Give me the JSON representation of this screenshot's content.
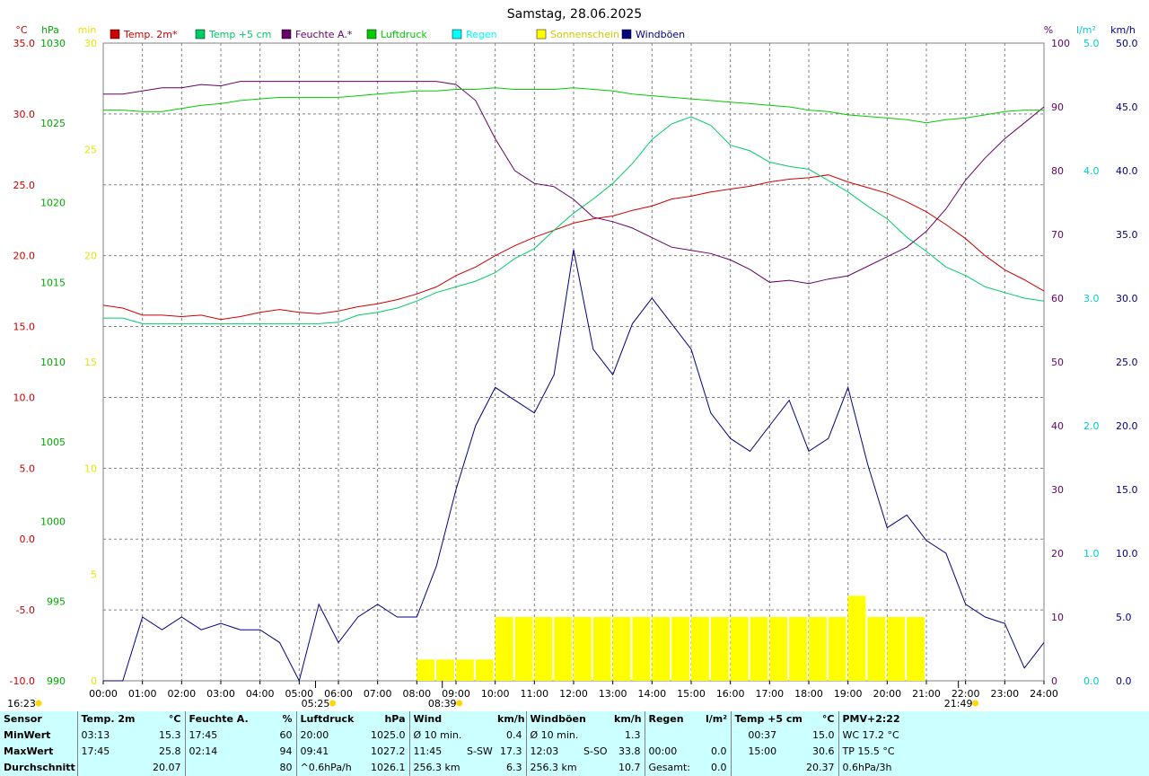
{
  "chart_data": {
    "type": "line",
    "title": "Samstag, 28.06.2025",
    "x_unit": "hours",
    "xlim": [
      0,
      24
    ],
    "x_ticks": [
      "00:00",
      "01:00",
      "02:00",
      "03:00",
      "04:00",
      "05:00",
      "06:00",
      "07:00",
      "08:00",
      "09:00",
      "10:00",
      "11:00",
      "12:00",
      "13:00",
      "14:00",
      "15:00",
      "16:00",
      "17:00",
      "18:00",
      "19:00",
      "20:00",
      "21:00",
      "22:00",
      "23:00",
      "24:00"
    ],
    "axes": {
      "temp": {
        "unit": "°C",
        "range": [
          -10,
          35
        ],
        "ticks": [
          "35.0",
          "30.0",
          "25.0",
          "20.0",
          "15.0",
          "10.0",
          "5.0",
          "0.0",
          "-5.0",
          "-10.0"
        ],
        "color": "#cc0000"
      },
      "pressure": {
        "unit": "hPa",
        "range": [
          990,
          1030
        ],
        "ticks": [
          "1030",
          "1025",
          "1020",
          "1015",
          "1010",
          "1005",
          "1000",
          "995",
          "990"
        ],
        "color": "#00aa00"
      },
      "sunshine": {
        "unit": "min",
        "range": [
          0,
          30
        ],
        "ticks": [
          "30",
          "25",
          "20",
          "15",
          "10",
          "5",
          "0"
        ],
        "color": "#e6e600"
      },
      "humidity": {
        "unit": "%",
        "range": [
          0,
          100
        ],
        "ticks": [
          "100",
          "90",
          "80",
          "70",
          "60",
          "50",
          "40",
          "30",
          "20",
          "10",
          "0"
        ],
        "color": "#660066"
      },
      "rain": {
        "unit": "l/m²",
        "range": [
          0,
          5
        ],
        "ticks": [
          "5.0",
          "4.0",
          "3.0",
          "2.0",
          "1.0",
          "0.0"
        ],
        "color": "#00cccc"
      },
      "wind": {
        "unit": "km/h",
        "range": [
          0,
          50
        ],
        "ticks": [
          "50.0",
          "45.0",
          "40.0",
          "35.0",
          "30.0",
          "25.0",
          "20.0",
          "15.0",
          "10.0",
          "5.0",
          "0.0"
        ],
        "color": "#000080"
      }
    },
    "legend": [
      {
        "name": "Temp. 2m*",
        "color": "#cc0000"
      },
      {
        "name": "Temp +5 cm",
        "color": "#00cc66"
      },
      {
        "name": "Feuchte A.*",
        "color": "#660066"
      },
      {
        "name": "Luftdruck",
        "color": "#00cc00"
      },
      {
        "name": "Regen",
        "color": "#00ffff"
      },
      {
        "name": "Sonnenschein",
        "color": "#ffff00"
      },
      {
        "name": "Windböen",
        "color": "#000080"
      }
    ],
    "series": [
      {
        "name": "Temp. 2m*",
        "axis": "temp",
        "x": [
          0,
          0.5,
          1,
          1.5,
          2,
          2.5,
          3,
          3.5,
          4,
          4.5,
          5,
          5.5,
          6,
          6.5,
          7,
          7.5,
          8,
          8.5,
          9,
          9.5,
          10,
          10.5,
          11,
          11.5,
          12,
          12.5,
          13,
          13.5,
          14,
          14.5,
          15,
          15.5,
          16,
          16.5,
          17,
          17.5,
          18,
          18.5,
          19,
          19.5,
          20,
          20.5,
          21,
          21.5,
          22,
          22.5,
          23,
          23.5,
          24
        ],
        "y": [
          16.5,
          16.3,
          15.8,
          15.8,
          15.7,
          15.8,
          15.5,
          15.7,
          16,
          16.2,
          16,
          15.9,
          16.1,
          16.4,
          16.6,
          16.9,
          17.3,
          17.8,
          18.6,
          19.2,
          20,
          20.7,
          21.3,
          21.8,
          22.3,
          22.6,
          22.8,
          23.2,
          23.5,
          24,
          24.2,
          24.5,
          24.7,
          24.9,
          25.2,
          25.4,
          25.5,
          25.7,
          25.2,
          24.8,
          24.4,
          23.8,
          23.1,
          22.2,
          21.2,
          20,
          19,
          18.3,
          17.5
        ]
      },
      {
        "name": "Temp +5 cm",
        "axis": "temp",
        "x": [
          0,
          0.5,
          1,
          1.5,
          2,
          2.5,
          3,
          3.5,
          4,
          4.5,
          5,
          5.5,
          6,
          6.5,
          7,
          7.5,
          8,
          8.5,
          9,
          9.5,
          10,
          10.5,
          11,
          11.5,
          12,
          12.5,
          13,
          13.5,
          14,
          14.5,
          15,
          15.5,
          16,
          16.5,
          17,
          17.5,
          18,
          18.5,
          19,
          19.5,
          20,
          20.5,
          21,
          21.5,
          22,
          22.5,
          23,
          23.5,
          24
        ],
        "y": [
          15.6,
          15.6,
          15.2,
          15.2,
          15.2,
          15.2,
          15.2,
          15.2,
          15.2,
          15.2,
          15.2,
          15.2,
          15.3,
          15.8,
          16,
          16.3,
          16.8,
          17.4,
          17.8,
          18.2,
          18.8,
          19.8,
          20.5,
          21.8,
          23,
          24,
          25.1,
          26.5,
          28.2,
          29.3,
          29.8,
          29.2,
          27.8,
          27.4,
          26.6,
          26.3,
          26.1,
          25.3,
          24.5,
          23.5,
          22.6,
          21.3,
          20.3,
          19.2,
          18.6,
          17.8,
          17.4,
          17,
          16.8
        ]
      },
      {
        "name": "Feuchte A.*",
        "axis": "humidity",
        "x": [
          0,
          0.5,
          1,
          1.5,
          2,
          2.5,
          3,
          3.5,
          4,
          4.5,
          5,
          5.5,
          6,
          6.5,
          7,
          7.5,
          8,
          8.5,
          9,
          9.5,
          10,
          10.5,
          11,
          11.5,
          12,
          12.5,
          13,
          13.5,
          14,
          14.5,
          15,
          15.5,
          16,
          16.5,
          17,
          17.5,
          18,
          18.5,
          19,
          19.5,
          20,
          20.5,
          21,
          21.5,
          22,
          22.5,
          23,
          23.5,
          24
        ],
        "y": [
          92,
          92,
          92.5,
          93,
          93,
          93.5,
          93.3,
          94,
          94,
          94,
          94,
          94,
          94,
          94,
          94,
          94,
          94,
          94,
          93.5,
          91,
          85,
          80,
          78,
          77.5,
          75.5,
          72.7,
          72,
          71,
          69.5,
          68,
          67.5,
          67,
          66,
          64.5,
          62.5,
          62.8,
          62.3,
          63,
          63.5,
          65,
          66.5,
          68,
          70.5,
          74,
          78.5,
          82,
          85,
          87.5,
          90
        ]
      },
      {
        "name": "Luftdruck",
        "axis": "pressure",
        "x": [
          0,
          0.5,
          1,
          1.5,
          2,
          2.5,
          3,
          3.5,
          4,
          4.5,
          5,
          5.5,
          6,
          6.5,
          7,
          7.5,
          8,
          8.5,
          9,
          9.5,
          10,
          10.5,
          11,
          11.5,
          12,
          12.5,
          13,
          13.5,
          14,
          14.5,
          15,
          15.5,
          16,
          16.5,
          17,
          17.5,
          18,
          18.5,
          19,
          19.5,
          20,
          20.5,
          21,
          21.5,
          22,
          22.5,
          23,
          23.5,
          24
        ],
        "y": [
          1025.8,
          1025.8,
          1025.7,
          1025.7,
          1025.9,
          1026.1,
          1026.2,
          1026.4,
          1026.5,
          1026.6,
          1026.6,
          1026.6,
          1026.6,
          1026.7,
          1026.8,
          1026.9,
          1027,
          1027,
          1027.1,
          1027.1,
          1027.2,
          1027.1,
          1027.1,
          1027.1,
          1027.2,
          1027.1,
          1027,
          1026.8,
          1026.7,
          1026.6,
          1026.5,
          1026.4,
          1026.3,
          1026.2,
          1026.1,
          1026,
          1025.8,
          1025.7,
          1025.5,
          1025.4,
          1025.3,
          1025.2,
          1025,
          1025.2,
          1025.3,
          1025.5,
          1025.7,
          1025.8,
          1025.8
        ]
      },
      {
        "name": "Windböen",
        "axis": "wind",
        "x": [
          0,
          0.5,
          1,
          1.5,
          2,
          2.5,
          3,
          3.5,
          4,
          4.5,
          5,
          5.5,
          6,
          6.5,
          7,
          7.5,
          8,
          8.5,
          9,
          9.5,
          10,
          10.5,
          11,
          11.5,
          12,
          12.5,
          13,
          13.5,
          14,
          14.5,
          15,
          15.5,
          16,
          16.5,
          17,
          17.5,
          18,
          18.5,
          19,
          19.5,
          20,
          20.5,
          21,
          21.5,
          22,
          22.5,
          23,
          23.5,
          24
        ],
        "y": [
          0,
          0,
          5,
          4,
          5,
          4,
          4.5,
          4,
          4,
          3,
          0,
          6,
          3,
          5,
          6,
          5,
          5,
          9,
          15,
          20,
          23,
          22,
          21,
          24,
          33.8,
          26,
          24,
          28,
          30,
          28,
          26,
          21,
          19,
          18,
          20,
          22,
          18,
          19,
          23,
          17,
          12,
          13,
          11,
          10,
          6,
          5,
          4.5,
          1,
          3
        ]
      },
      {
        "name": "Sonnenschein",
        "axis": "sunshine",
        "type": "bar",
        "x": [
          8,
          8.5,
          9,
          9.5,
          10,
          10.5,
          11,
          11.5,
          12,
          12.5,
          13,
          13.5,
          14,
          14.5,
          15,
          15.5,
          16,
          16.5,
          17,
          17.5,
          18,
          18.5,
          19,
          19.5,
          20,
          20.5
        ],
        "y": [
          1,
          1,
          1,
          1,
          3,
          3,
          3,
          3,
          3,
          3,
          3,
          3,
          3,
          3,
          3,
          3,
          3,
          3,
          3,
          3,
          3,
          3,
          4,
          3,
          3,
          3
        ]
      }
    ],
    "markers": [
      {
        "time": "05:25",
        "label": "05:25"
      },
      {
        "time": "08:39",
        "label": "08:39"
      },
      {
        "time": "21:49",
        "label": "21:49"
      },
      {
        "time": "16:23",
        "label": "16:23"
      }
    ],
    "grid": true
  },
  "stats": {
    "header": {
      "sensor": "Sensor",
      "temp2m": "Temp. 2m",
      "temp2m_unit": "°C",
      "feuchte": "Feuchte A.",
      "feuchte_unit": "%",
      "luftdruck": "Luftdruck",
      "luftdruck_unit": "hPa",
      "wind": "Wind",
      "wind_unit": "km/h",
      "windboeen": "Windböen",
      "windboeen_unit": "km/h",
      "regen": "Regen",
      "regen_unit": "l/m²",
      "temp5": "Temp +5 cm",
      "temp5_unit": "°C",
      "pmv": "PMV+2:22"
    },
    "rows": [
      {
        "label": "MinWert",
        "temp2m_t": "03:13",
        "temp2m_v": "15.3",
        "feuchte_t": "17:45",
        "feuchte_v": "60",
        "luftdruck_t": "20:00",
        "luftdruck_v": "1025.0",
        "wind_t": "Ø 10 min.",
        "wind_dir": "",
        "wind_v": "0.4",
        "boeen_t": "Ø 10 min.",
        "boeen_dir": "",
        "boeen_v": "1.3",
        "regen_t": "",
        "regen_v": "",
        "temp5_t": "00:37",
        "temp5_v": "15.0",
        "pmv": "WC 17.2 °C"
      },
      {
        "label": "MaxWert",
        "temp2m_t": "17:45",
        "temp2m_v": "25.8",
        "feuchte_t": "02:14",
        "feuchte_v": "94",
        "luftdruck_t": "09:41",
        "luftdruck_v": "1027.2",
        "wind_t": "11:45",
        "wind_dir": "S-SW",
        "wind_v": "17.3",
        "boeen_t": "12:03",
        "boeen_dir": "S-SO",
        "boeen_v": "33.8",
        "regen_t": "00:00",
        "regen_v": "0.0",
        "temp5_t": "15:00",
        "temp5_v": "30.6",
        "pmv": "TP 15.5 °C"
      },
      {
        "label": "Durchschnitt",
        "temp2m_t": "",
        "temp2m_v": "20.07",
        "feuchte_t": "",
        "feuchte_v": "80",
        "luftdruck_t": "^0.6hPa/h",
        "luftdruck_v": "1026.1",
        "wind_t": "256.3 km",
        "wind_dir": "",
        "wind_v": "6.3",
        "boeen_t": "256.3 km",
        "boeen_dir": "",
        "boeen_v": "10.7",
        "regen_t": "Gesamt:",
        "regen_v": "0.0",
        "temp5_t": "",
        "temp5_v": "20.37",
        "pmv": "0.6hPa/3h"
      }
    ]
  }
}
